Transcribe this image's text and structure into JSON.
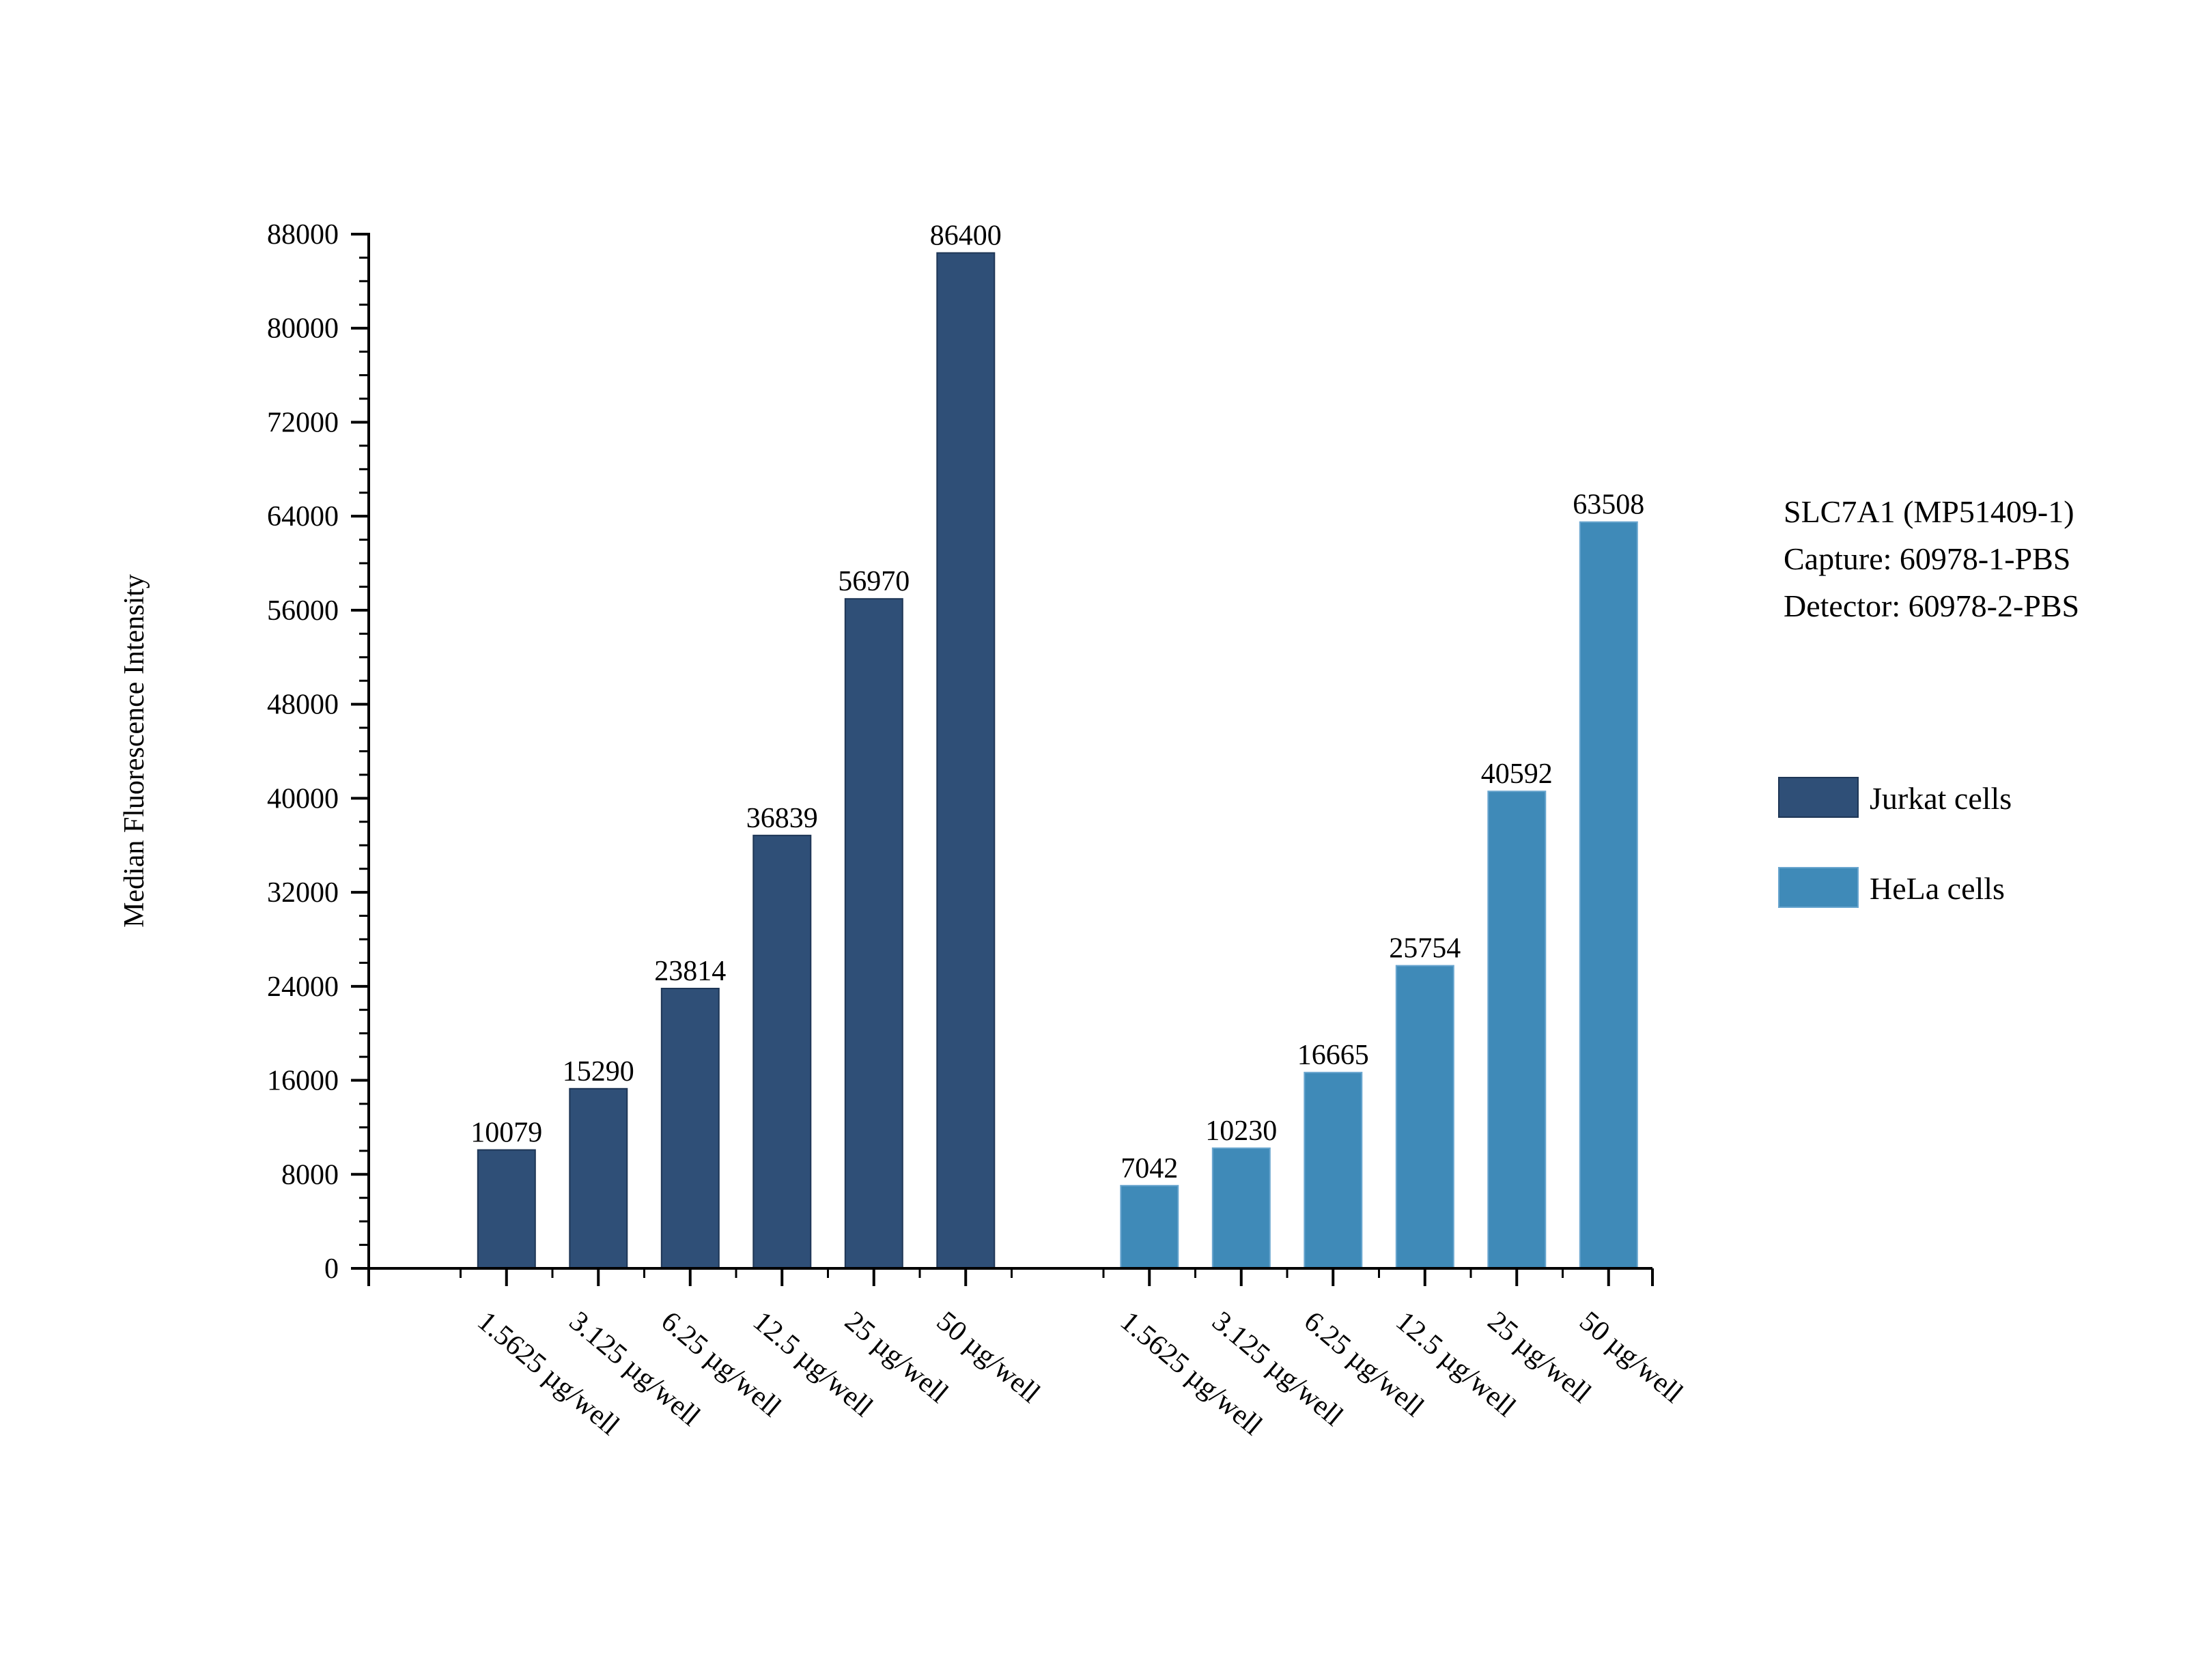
{
  "chart_data": {
    "type": "bar",
    "title": "",
    "xlabel": "",
    "ylabel": "Median Fluorescence Intensity",
    "ylim": [
      0,
      88000
    ],
    "yticks": [
      0,
      8000,
      16000,
      24000,
      32000,
      40000,
      48000,
      56000,
      64000,
      72000,
      80000,
      88000
    ],
    "grid": false,
    "legend_position": "right",
    "annotations": [
      "SLC7A1 (MP51409-1)",
      "Capture: 60978-1-PBS",
      "Detector: 60978-2-PBS"
    ],
    "series": [
      {
        "name": "Jurkat cells",
        "color": "#2f4f77",
        "categories": [
          "1.5625 µg/well",
          "3.125 µg/well",
          "6.25 µg/well",
          "12.5 µg/well",
          "25 µg/well",
          "50 µg/well"
        ],
        "values": [
          10079,
          15290,
          23814,
          36839,
          56970,
          86400
        ]
      },
      {
        "name": "HeLa cells",
        "color": "#3f8ab8",
        "categories": [
          "1.5625 µg/well",
          "3.125 µg/well",
          "6.25 µg/well",
          "12.5 µg/well",
          "25 µg/well",
          "50 µg/well"
        ],
        "values": [
          7042,
          10230,
          16665,
          25754,
          40592,
          63508
        ]
      }
    ]
  }
}
